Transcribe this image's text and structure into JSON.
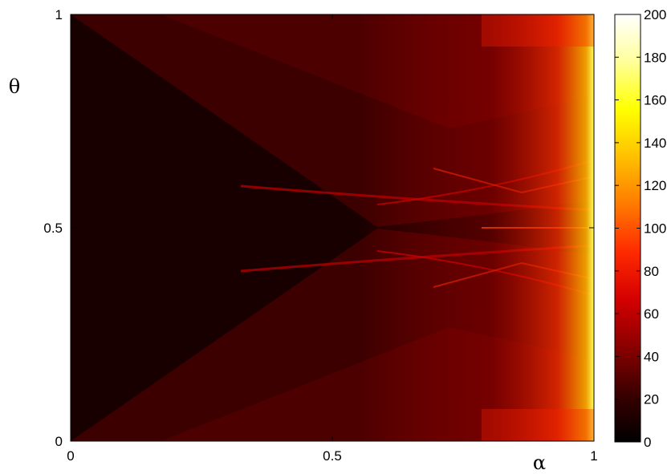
{
  "chart_data": {
    "type": "heatmap",
    "title": "",
    "xlabel": "α",
    "ylabel": "θ",
    "xlim": [
      0,
      1
    ],
    "ylim": [
      0,
      1
    ],
    "x_ticks": [
      {
        "value": 0,
        "label": "0"
      },
      {
        "value": 0.5,
        "label": "0.5"
      },
      {
        "value": 1,
        "label": "1"
      }
    ],
    "y_ticks": [
      {
        "value": 0,
        "label": "0"
      },
      {
        "value": 0.5,
        "label": "0.5"
      },
      {
        "value": 1,
        "label": "1"
      }
    ],
    "colorbar": {
      "range": [
        0,
        200
      ],
      "ticks": [
        {
          "value": 0,
          "label": "0"
        },
        {
          "value": 20,
          "label": "20"
        },
        {
          "value": 40,
          "label": "40"
        },
        {
          "value": 60,
          "label": "60"
        },
        {
          "value": 80,
          "label": "80"
        },
        {
          "value": 100,
          "label": "100"
        },
        {
          "value": 120,
          "label": "120"
        },
        {
          "value": 140,
          "label": "140"
        },
        {
          "value": 160,
          "label": "160"
        },
        {
          "value": 180,
          "label": "180"
        },
        {
          "value": 200,
          "label": "200"
        }
      ],
      "colormap": "hot",
      "colors": [
        "#000000",
        "#3a0000",
        "#8a0000",
        "#d40000",
        "#ff2a00",
        "#ff7a00",
        "#ffc000",
        "#ffff00",
        "#ffff9a",
        "#ffffff"
      ]
    },
    "grid": false
  }
}
